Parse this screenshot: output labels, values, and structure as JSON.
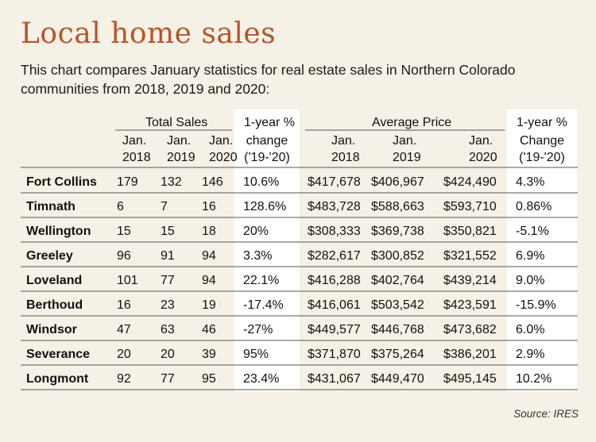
{
  "title": "Local home sales",
  "subtitle": "This chart compares January statistics for real estate sales in Northern Colorado communities from 2018, 2019 and 2020:",
  "source": "Source: IRES",
  "colors": {
    "title": "#b8542a",
    "background": "#f6f1e6",
    "highlight_column": "#ffffff",
    "rule": "#555555"
  },
  "chart_data": {
    "type": "table",
    "group_headers": [
      "Total Sales",
      "1-year %",
      "Average Price",
      "1-year %"
    ],
    "column_headers": [
      [
        "Jan.",
        "2018"
      ],
      [
        "Jan.",
        "2019"
      ],
      [
        "Jan.",
        "2020"
      ],
      [
        "change",
        "('19-'20)"
      ],
      [
        "Jan.",
        "2018"
      ],
      [
        "Jan.",
        "2019"
      ],
      [
        "Jan.",
        "2020"
      ],
      [
        "Change",
        "('19-'20)"
      ]
    ],
    "rows": [
      {
        "city": "Fort Collins",
        "cells": [
          "179",
          "132",
          "146",
          "10.6%",
          "$417,678",
          "$406,967",
          "$424,490",
          "4.3%"
        ]
      },
      {
        "city": "Timnath",
        "cells": [
          "6",
          "7",
          "16",
          "128.6%",
          "$483,728",
          "$588,663",
          "$593,710",
          "0.86%"
        ]
      },
      {
        "city": "Wellington",
        "cells": [
          "15",
          "15",
          "18",
          "20%",
          "$308,333",
          "$369,738",
          "$350,821",
          "-5.1%"
        ]
      },
      {
        "city": "Greeley",
        "cells": [
          "96",
          "91",
          "94",
          "3.3%",
          "$282,617",
          "$300,852",
          "$321,552",
          "6.9%"
        ]
      },
      {
        "city": "Loveland",
        "cells": [
          "101",
          "77",
          "94",
          "22.1%",
          "$416,288",
          "$402,764",
          "$439,214",
          "9.0%"
        ]
      },
      {
        "city": "Berthoud",
        "cells": [
          "16",
          "23",
          "19",
          "-17.4%",
          "$416,061",
          "$503,542",
          "$423,591",
          "-15.9%"
        ]
      },
      {
        "city": "Windsor",
        "cells": [
          "47",
          "63",
          "46",
          "-27%",
          "$449,577",
          "$446,768",
          "$473,682",
          "6.0%"
        ]
      },
      {
        "city": "Severance",
        "cells": [
          "20",
          "20",
          "39",
          "95%",
          "$371,870",
          "$375,264",
          "$386,201",
          "2.9%"
        ]
      },
      {
        "city": "Longmont",
        "cells": [
          "92",
          "77",
          "95",
          "23.4%",
          "$431,067",
          "$449,470",
          "$495,145",
          "10.2%"
        ]
      }
    ]
  }
}
